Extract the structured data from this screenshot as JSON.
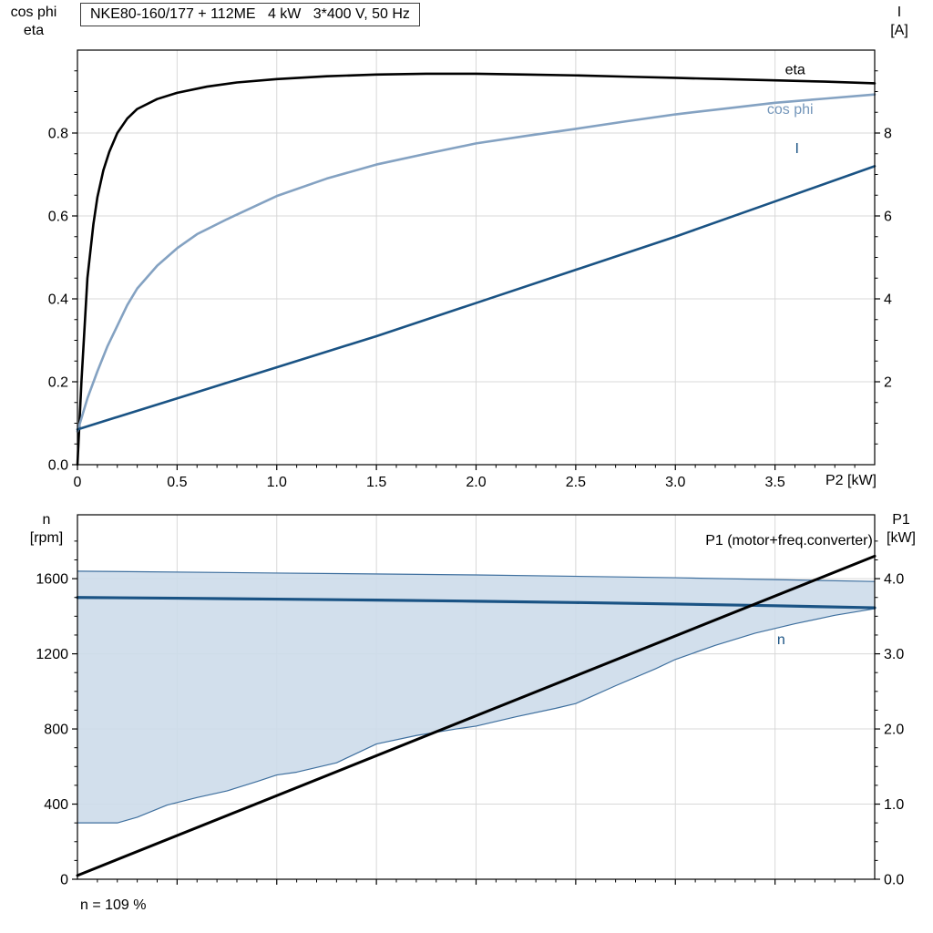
{
  "page": {
    "background": "#ffffff"
  },
  "chart_data": [
    {
      "type": "line",
      "title": "NKE80-160/177 + 112ME   4 kW   3*400 V, 50 Hz",
      "header_left": [
        "cos phi",
        "eta"
      ],
      "header_right": [
        "I",
        "[A]"
      ],
      "grid": {
        "color": "#d8d8d8"
      },
      "x": {
        "min": 0,
        "max": 4,
        "label": "P2 [kW]",
        "ticks": [
          0,
          0.5,
          1,
          1.5,
          2,
          2.5,
          3,
          3.5
        ],
        "tick_labels": [
          "0",
          "0.5",
          "1.0",
          "1.5",
          "2.0",
          "2.5",
          "3.0",
          "3.5"
        ],
        "minor_step": 0.1
      },
      "y_left": {
        "min": 0,
        "max": 1.0,
        "ticks": [
          0,
          0.2,
          0.4,
          0.6,
          0.8
        ],
        "tick_labels": [
          "0.0",
          "0.2",
          "0.4",
          "0.6",
          "0.8"
        ],
        "minor_step": 0.05
      },
      "y_right": {
        "min": 0,
        "max": 10,
        "ticks": [
          2,
          4,
          6,
          8
        ],
        "tick_labels": [
          "2",
          "4",
          "6",
          "8"
        ],
        "minor_step": 0.5
      },
      "series": [
        {
          "name": "eta",
          "axis": "left",
          "color": "#000000",
          "width": 2.6,
          "points": [
            [
              0,
              0
            ],
            [
              0.02,
              0.2
            ],
            [
              0.05,
              0.45
            ],
            [
              0.08,
              0.58
            ],
            [
              0.1,
              0.645
            ],
            [
              0.13,
              0.71
            ],
            [
              0.16,
              0.755
            ],
            [
              0.2,
              0.8
            ],
            [
              0.25,
              0.835
            ],
            [
              0.3,
              0.858
            ],
            [
              0.4,
              0.882
            ],
            [
              0.5,
              0.897
            ],
            [
              0.65,
              0.912
            ],
            [
              0.8,
              0.922
            ],
            [
              1,
              0.93
            ],
            [
              1.25,
              0.937
            ],
            [
              1.5,
              0.941
            ],
            [
              1.75,
              0.943
            ],
            [
              2,
              0.943
            ],
            [
              2.25,
              0.941
            ],
            [
              2.5,
              0.939
            ],
            [
              2.75,
              0.936
            ],
            [
              3,
              0.933
            ],
            [
              3.25,
              0.93
            ],
            [
              3.5,
              0.927
            ],
            [
              3.75,
              0.924
            ],
            [
              4,
              0.92
            ]
          ],
          "label": {
            "text": "eta",
            "x": 3.55,
            "y": 0.942,
            "anchor": "start",
            "color": "#000000"
          }
        },
        {
          "name": "cos phi",
          "axis": "left",
          "color": "#84a2c2",
          "width": 2.6,
          "points": [
            [
              0,
              0.08
            ],
            [
              0.05,
              0.16
            ],
            [
              0.1,
              0.225
            ],
            [
              0.15,
              0.285
            ],
            [
              0.2,
              0.335
            ],
            [
              0.25,
              0.385
            ],
            [
              0.3,
              0.425
            ],
            [
              0.4,
              0.48
            ],
            [
              0.5,
              0.522
            ],
            [
              0.6,
              0.556
            ],
            [
              0.75,
              0.592
            ],
            [
              1,
              0.648
            ],
            [
              1.25,
              0.69
            ],
            [
              1.5,
              0.724
            ],
            [
              1.75,
              0.75
            ],
            [
              2,
              0.775
            ],
            [
              2.25,
              0.793
            ],
            [
              2.5,
              0.81
            ],
            [
              2.75,
              0.828
            ],
            [
              3,
              0.845
            ],
            [
              3.25,
              0.859
            ],
            [
              3.5,
              0.873
            ],
            [
              3.75,
              0.883
            ],
            [
              4,
              0.893
            ]
          ],
          "label": {
            "text": "cos phi",
            "x": 3.46,
            "y": 0.846,
            "anchor": "start",
            "color": "#7496ba"
          }
        },
        {
          "name": "I",
          "axis": "right",
          "color": "#1a5384",
          "width": 2.6,
          "points": [
            [
              0,
              0.85
            ],
            [
              0.5,
              1.6
            ],
            [
              1,
              2.35
            ],
            [
              1.5,
              3.1
            ],
            [
              2,
              3.9
            ],
            [
              2.5,
              4.7
            ],
            [
              3,
              5.5
            ],
            [
              3.5,
              6.35
            ],
            [
              4,
              7.2
            ]
          ],
          "label": {
            "text": "I",
            "x": 3.6,
            "y": 7.52,
            "anchor": "start",
            "color": "#1a5384"
          }
        }
      ]
    },
    {
      "type": "line",
      "header_left": [
        "n",
        "[rpm]"
      ],
      "header_right": [
        "P1",
        "[kW]"
      ],
      "note": "n = 109 %",
      "grid": {
        "color": "#d8d8d8"
      },
      "x": {
        "min": 0,
        "max": 4,
        "label": "",
        "ticks": [
          0.5,
          1,
          1.5,
          2,
          2.5,
          3,
          3.5
        ],
        "tick_labels": null,
        "minor_step": 0.1
      },
      "y_left": {
        "min": 0,
        "max": 1940,
        "ticks": [
          0,
          400,
          800,
          1200,
          1600
        ],
        "tick_labels": [
          "0",
          "400",
          "800",
          "1200",
          "1600"
        ],
        "minor_step": 100
      },
      "y_right": {
        "min": 0,
        "max": 4.85,
        "ticks": [
          0,
          1,
          2,
          3,
          4
        ],
        "tick_labels": [
          "0.0",
          "1.0",
          "2.0",
          "3.0",
          "4.0"
        ],
        "minor_step": 0.25
      },
      "band": {
        "axis": "left",
        "fill": "#cddcea",
        "opacity": 0.9,
        "stroke": "#3e6f9e",
        "stroke_width": 1.2,
        "upper": [
          [
            0,
            1640
          ],
          [
            1,
            1630
          ],
          [
            2,
            1620
          ],
          [
            3,
            1605
          ],
          [
            4,
            1585
          ]
        ],
        "lower": [
          [
            0,
            300
          ],
          [
            0.2,
            300
          ],
          [
            0.3,
            330
          ],
          [
            0.45,
            395
          ],
          [
            0.6,
            435
          ],
          [
            0.75,
            470
          ],
          [
            0.9,
            520
          ],
          [
            1,
            555
          ],
          [
            1.1,
            570
          ],
          [
            1.3,
            620
          ],
          [
            1.5,
            720
          ],
          [
            1.7,
            765
          ],
          [
            1.9,
            800
          ],
          [
            2,
            815
          ],
          [
            2.2,
            865
          ],
          [
            2.4,
            910
          ],
          [
            2.5,
            935
          ],
          [
            2.7,
            1030
          ],
          [
            2.9,
            1120
          ],
          [
            3,
            1170
          ],
          [
            3.2,
            1245
          ],
          [
            3.4,
            1310
          ],
          [
            3.6,
            1360
          ],
          [
            3.8,
            1405
          ],
          [
            4,
            1440
          ]
        ]
      },
      "series": [
        {
          "name": "n",
          "axis": "left",
          "color": "#1a5384",
          "width": 3.2,
          "points": [
            [
              0,
              1500
            ],
            [
              0.5,
              1496
            ],
            [
              1,
              1491
            ],
            [
              1.5,
              1486
            ],
            [
              2,
              1480
            ],
            [
              2.5,
              1473
            ],
            [
              3,
              1465
            ],
            [
              3.5,
              1456
            ],
            [
              4,
              1445
            ]
          ],
          "label": {
            "text": "n",
            "x": 3.51,
            "y": 1251,
            "anchor": "start",
            "color": "#1a5384"
          }
        },
        {
          "name": "P1 (motor+freq.converter)",
          "axis": "right",
          "color": "#000000",
          "width": 3,
          "points": [
            [
              0,
              0.05
            ],
            [
              4,
              4.3
            ]
          ],
          "label": {
            "text": "P1 (motor+freq.converter)",
            "x": 3.99,
            "y": 4.45,
            "anchor": "end",
            "color": "#000000"
          }
        }
      ]
    }
  ]
}
